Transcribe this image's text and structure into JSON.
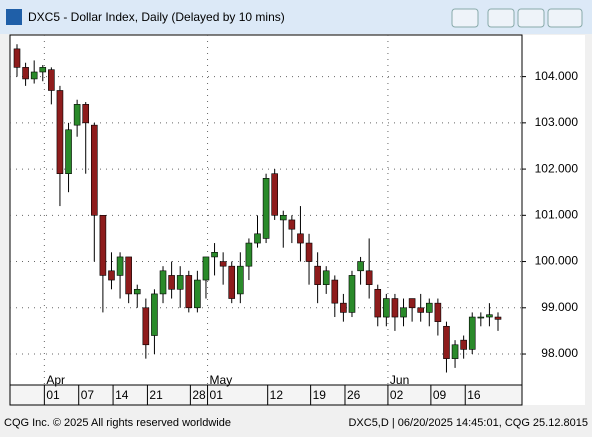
{
  "window": {
    "title": "DXC5 - Dollar Index, Daily (Delayed by 10 mins)"
  },
  "footer": {
    "left": "CQG Inc. © 2025 All rights reserved worldwide",
    "right": "DXC5,D | 06/20/2025 14:45:01, CQG 25.12.8015"
  },
  "chart_data": {
    "type": "candlestick",
    "categories": [
      null,
      null,
      null,
      null,
      "01",
      null,
      null,
      null,
      "07",
      null,
      null,
      null,
      "14",
      null,
      null,
      null,
      "21",
      null,
      null,
      null,
      null,
      "28",
      null,
      "01",
      null,
      null,
      null,
      null,
      null,
      null,
      "12",
      null,
      null,
      null,
      null,
      "19",
      null,
      null,
      null,
      "26",
      null,
      null,
      null,
      null,
      "02",
      null,
      null,
      null,
      null,
      "09",
      null,
      null,
      null,
      "16",
      null,
      null,
      null
    ],
    "month_categories": [
      null,
      null,
      null,
      null,
      "Apr",
      null,
      null,
      null,
      null,
      null,
      null,
      null,
      null,
      null,
      null,
      null,
      null,
      null,
      null,
      null,
      null,
      null,
      null,
      "May",
      null,
      null,
      null,
      null,
      null,
      null,
      null,
      null,
      null,
      null,
      null,
      null,
      null,
      null,
      null,
      null,
      null,
      null,
      null,
      null,
      "Jun",
      null,
      null,
      null,
      null,
      null,
      null,
      null,
      null,
      null,
      null,
      null,
      null
    ],
    "open": [
      104.6,
      104.2,
      103.95,
      104.1,
      104.15,
      103.7,
      101.9,
      102.95,
      103.4,
      102.95,
      101.0,
      99.8,
      99.7,
      100.1,
      99.3,
      99.0,
      98.4,
      99.3,
      99.7,
      99.4,
      99.7,
      99.0,
      99.6,
      100.1,
      100.0,
      99.9,
      99.3,
      99.9,
      100.4,
      100.5,
      101.9,
      100.9,
      100.9,
      100.6,
      100.4,
      99.9,
      99.5,
      99.6,
      99.1,
      98.9,
      99.8,
      99.8,
      99.4,
      98.8,
      99.2,
      98.8,
      99.2,
      99.0,
      98.9,
      99.1,
      98.6,
      97.9,
      98.3,
      98.1,
      98.8,
      98.8,
      98.8
    ],
    "high": [
      104.7,
      104.3,
      104.35,
      104.25,
      104.2,
      103.8,
      103.0,
      103.5,
      103.45,
      103.0,
      101.0,
      100.2,
      100.2,
      100.1,
      99.5,
      99.2,
      99.4,
      99.9,
      100.0,
      99.9,
      99.8,
      99.8,
      100.1,
      100.4,
      100.2,
      100.0,
      100.2,
      100.5,
      101.0,
      101.9,
      102.0,
      101.1,
      101.0,
      101.2,
      100.6,
      100.2,
      99.9,
      99.7,
      99.3,
      99.8,
      100.1,
      100.5,
      99.5,
      99.3,
      99.3,
      99.2,
      99.2,
      99.3,
      99.2,
      99.2,
      98.7,
      98.3,
      98.4,
      98.9,
      98.9,
      99.1,
      98.9
    ],
    "low": [
      104.0,
      103.8,
      103.85,
      103.9,
      103.4,
      101.2,
      101.5,
      102.7,
      101.9,
      100.0,
      98.9,
      99.4,
      99.2,
      99.1,
      99.0,
      97.9,
      98.0,
      99.1,
      99.2,
      99.0,
      98.9,
      98.9,
      99.2,
      99.7,
      99.5,
      99.1,
      99.1,
      99.6,
      100.3,
      100.4,
      100.9,
      100.3,
      100.4,
      100.0,
      99.5,
      99.1,
      99.3,
      98.8,
      98.7,
      98.8,
      99.5,
      99.2,
      98.6,
      98.6,
      98.5,
      98.6,
      98.7,
      98.7,
      98.6,
      98.4,
      97.6,
      97.7,
      97.9,
      98.0,
      98.6,
      98.6,
      98.5
    ],
    "close": [
      104.2,
      103.95,
      104.1,
      104.2,
      103.7,
      101.9,
      102.85,
      103.4,
      103.0,
      101.0,
      99.7,
      99.6,
      100.1,
      99.3,
      99.4,
      98.2,
      99.3,
      99.8,
      99.4,
      99.7,
      99.0,
      99.6,
      100.1,
      100.2,
      99.9,
      99.2,
      99.9,
      100.4,
      100.6,
      101.8,
      101.0,
      101.0,
      100.7,
      100.4,
      100.0,
      99.5,
      99.8,
      99.1,
      98.9,
      99.7,
      100.0,
      99.5,
      98.8,
      99.2,
      98.8,
      99.0,
      99.0,
      98.9,
      99.1,
      98.7,
      97.9,
      98.2,
      98.1,
      98.8,
      98.8,
      98.85,
      98.75
    ],
    "up_color": "#2a8a2a",
    "down_color": "#8e1c1c",
    "ylim": [
      97.33,
      104.9
    ],
    "yticks": [
      {
        "value": 98,
        "label": "98.000"
      },
      {
        "value": 99,
        "label": "99.000"
      },
      {
        "value": 100,
        "label": "100.000"
      },
      {
        "value": 101,
        "label": "101.000"
      },
      {
        "value": 102,
        "label": "102.000"
      },
      {
        "value": 103,
        "label": "103.000"
      },
      {
        "value": 104,
        "label": "104.000"
      }
    ],
    "grid": true
  }
}
